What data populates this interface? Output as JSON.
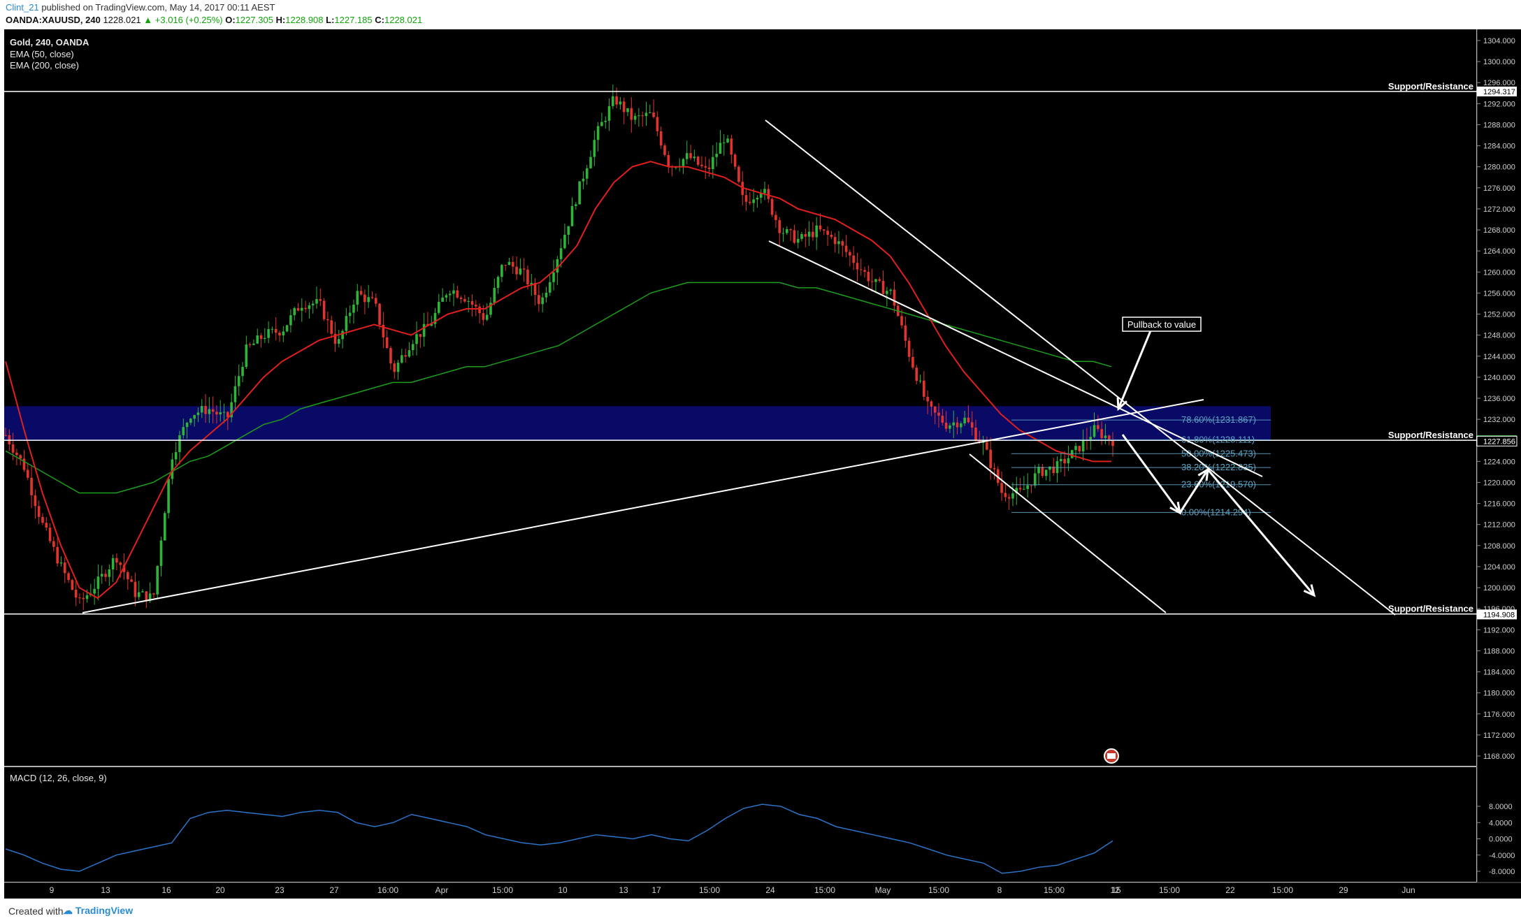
{
  "header": {
    "user": "Clint_21",
    "published": " published on TradingView.com, May 14, 2017 00:11 AEST",
    "symbol_tf": "OANDA:XAUUSD, 240",
    "last": "1228.021",
    "change": "▲ +3.016 (+0.25%)",
    "o_label": "O:",
    "o": "1227.305",
    "h_label": "H:",
    "h": "1228.908",
    "l_label": "L:",
    "l": "1227.185",
    "c_label": "C:",
    "c": "1228.021"
  },
  "legend": {
    "title": "Gold, 240, OANDA",
    "ema50": "EMA (50, close)",
    "ema200": "EMA (200, close)",
    "macd": "MACD (12, 26, close, 9)"
  },
  "colors": {
    "background": "#000000",
    "bull": "#2fb43a",
    "bear": "#e2342e",
    "ema50": "#e0201c",
    "ema200": "#1b9e1b",
    "macd": "#2a73c9",
    "zone": "#0a0a78",
    "fib": "#5fa4c4",
    "lines": "#ffffff"
  },
  "chart_data": {
    "type": "candlestick",
    "y_ticks": [
      "1304.000",
      "1300.000",
      "1296.000",
      "1292.000",
      "1288.000",
      "1284.000",
      "1280.000",
      "1276.000",
      "1272.000",
      "1268.000",
      "1264.000",
      "1260.000",
      "1256.000",
      "1252.000",
      "1248.000",
      "1244.000",
      "1240.000",
      "1236.000",
      "1232.000",
      "1228.000",
      "1224.000",
      "1220.000",
      "1216.000",
      "1212.000",
      "1208.000",
      "1204.000",
      "1200.000",
      "1196.000",
      "1192.000",
      "1188.000",
      "1184.000",
      "1180.000",
      "1176.000",
      "1172.000",
      "1168.000"
    ],
    "x_ticks": [
      "9",
      "13",
      "16",
      "20",
      "23",
      "27",
      "16:00",
      "Apr",
      "15:00",
      "10",
      "13",
      "17",
      "15:00",
      "24",
      "15:00",
      "May",
      "15:00",
      "8",
      "15:00",
      "12",
      "15",
      "15:00",
      "22",
      "15:00",
      "29",
      "Jun"
    ],
    "price_markers": [
      {
        "label": "1294.317",
        "value": 1294.317,
        "style": "white"
      },
      {
        "label": "1228.021",
        "value": 1228.021,
        "style": "green"
      },
      {
        "label": "1227.856",
        "value": 1227.856,
        "style": "black"
      },
      {
        "label": "1194.908",
        "value": 1194.908,
        "style": "white"
      }
    ],
    "sr_levels": [
      {
        "label": "Support/Resistance",
        "value": 1294.317
      },
      {
        "label": "Support/Resistance",
        "value": 1228.021
      },
      {
        "label": "Support/Resistance",
        "value": 1195.0
      }
    ],
    "zone": {
      "from": 1228.0,
      "to": 1234.5
    },
    "fib_levels": [
      {
        "label": "78.60%(1231.867)",
        "value": 1231.867
      },
      {
        "label": "61.80%(1228.111)",
        "value": 1228.111
      },
      {
        "label": "50.00%(1225.473)",
        "value": 1225.473
      },
      {
        "label": "38.20%(1222.835)",
        "value": 1222.835
      },
      {
        "label": "23.60%(1219.570)",
        "value": 1219.57
      },
      {
        "label": "0.00%(1214.294)",
        "value": 1214.294
      }
    ],
    "annotation": "Pullback to value",
    "macd_ticks": [
      "8.0000",
      "4.0000",
      "0.0000",
      "-4.0000",
      "-8.0000"
    ],
    "price_path": [
      1229,
      1223,
      1212,
      1204,
      1197,
      1201,
      1206,
      1199,
      1198,
      1225,
      1233,
      1234,
      1232,
      1245,
      1248,
      1249,
      1254,
      1254,
      1246,
      1256,
      1254,
      1241,
      1247,
      1250,
      1257,
      1255,
      1251,
      1262,
      1260,
      1254,
      1264,
      1275,
      1286,
      1293,
      1289,
      1290,
      1280,
      1282,
      1279,
      1286,
      1273,
      1276,
      1268,
      1266,
      1268,
      1266,
      1262,
      1258,
      1256,
      1244,
      1234,
      1231,
      1232,
      1227,
      1218,
      1218,
      1222,
      1223,
      1226,
      1230,
      1228
    ],
    "ema50_path": [
      1243,
      1230,
      1218,
      1208,
      1200,
      1198,
      1201,
      1208,
      1215,
      1222,
      1226,
      1229,
      1232,
      1236,
      1240,
      1243,
      1245,
      1247,
      1248,
      1249,
      1250,
      1249,
      1248,
      1250,
      1252,
      1253,
      1253,
      1255,
      1257,
      1258,
      1261,
      1265,
      1272,
      1277,
      1280,
      1281,
      1280,
      1280,
      1279,
      1278,
      1276,
      1275,
      1274,
      1272,
      1271,
      1270,
      1268,
      1266,
      1263,
      1258,
      1252,
      1246,
      1241,
      1237,
      1233,
      1230,
      1228,
      1226,
      1225,
      1224,
      1224
    ],
    "ema200_path": [
      1226,
      1224,
      1222,
      1220,
      1218,
      1218,
      1218,
      1219,
      1220,
      1222,
      1224,
      1225,
      1227,
      1229,
      1231,
      1232,
      1234,
      1235,
      1236,
      1237,
      1238,
      1239,
      1239,
      1240,
      1241,
      1242,
      1242,
      1243,
      1244,
      1245,
      1246,
      1248,
      1250,
      1252,
      1254,
      1256,
      1257,
      1258,
      1258,
      1258,
      1258,
      1258,
      1258,
      1257,
      1257,
      1256,
      1255,
      1254,
      1253,
      1252,
      1251,
      1250,
      1249,
      1248,
      1247,
      1246,
      1245,
      1244,
      1243,
      1243,
      1242
    ],
    "macd_path": [
      -2.5,
      -4,
      -6,
      -7.5,
      -8,
      -6,
      -4,
      -3,
      -2,
      -1,
      5,
      6.5,
      7,
      6.5,
      6,
      5.5,
      6.5,
      7,
      6.5,
      4,
      3,
      4,
      6,
      5,
      4,
      3,
      1,
      0,
      -1,
      -1.5,
      -1,
      0,
      1,
      0.5,
      0,
      1,
      0,
      -0.5,
      2,
      5,
      7.5,
      8.5,
      8,
      6,
      5,
      3,
      2,
      1,
      0,
      -1,
      -2.5,
      -4,
      -5,
      -6,
      -8.5,
      -8,
      -7,
      -6.5,
      -5,
      -3.5,
      -0.5
    ]
  },
  "footer": {
    "created_with": "Created with",
    "brand": "TradingView"
  }
}
